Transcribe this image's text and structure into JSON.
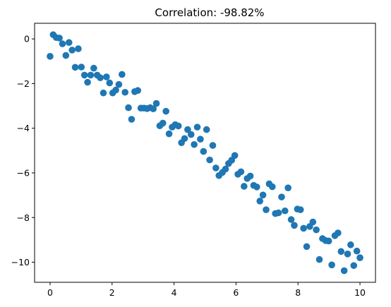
{
  "chart_data": {
    "type": "scatter",
    "title": "Correlation: -98.82%",
    "xlabel": "",
    "ylabel": "",
    "xlim": [
      -0.5,
      10.5
    ],
    "ylim": [
      -10.9,
      0.7
    ],
    "xticks": [
      0,
      2,
      4,
      6,
      8,
      10
    ],
    "yticks": [
      0,
      -2,
      -4,
      -6,
      -8,
      -10
    ],
    "xtick_labels": [
      "0",
      "2",
      "4",
      "6",
      "8",
      "10"
    ],
    "ytick_labels": [
      "0",
      "−2",
      "−4",
      "−6",
      "−8",
      "−10"
    ],
    "grid": false,
    "marker_color": "#1f77b4",
    "x": [
      0.0,
      0.1,
      0.2,
      0.3,
      0.4,
      0.51,
      0.61,
      0.71,
      0.81,
      0.91,
      1.01,
      1.11,
      1.21,
      1.31,
      1.41,
      1.52,
      1.62,
      1.72,
      1.82,
      1.92,
      2.02,
      2.12,
      2.22,
      2.32,
      2.42,
      2.53,
      2.63,
      2.73,
      2.83,
      2.93,
      3.03,
      3.13,
      3.23,
      3.33,
      3.43,
      3.54,
      3.64,
      3.74,
      3.84,
      3.94,
      4.04,
      4.14,
      4.24,
      4.34,
      4.44,
      4.55,
      4.65,
      4.75,
      4.85,
      4.95,
      5.05,
      5.15,
      5.25,
      5.35,
      5.45,
      5.56,
      5.66,
      5.76,
      5.86,
      5.96,
      6.06,
      6.16,
      6.26,
      6.36,
      6.46,
      6.57,
      6.67,
      6.77,
      6.87,
      6.97,
      7.07,
      7.17,
      7.27,
      7.37,
      7.47,
      7.58,
      7.68,
      7.78,
      7.88,
      7.98,
      8.08,
      8.18,
      8.28,
      8.38,
      8.48,
      8.59,
      8.69,
      8.79,
      8.89,
      8.99,
      9.09,
      9.19,
      9.29,
      9.39,
      9.49,
      9.6,
      9.7,
      9.8,
      9.9,
      10.0
    ],
    "y": [
      -0.78,
      0.19,
      0.06,
      0.04,
      -0.22,
      -0.74,
      -0.16,
      -0.5,
      -1.27,
      -0.44,
      -1.26,
      -1.62,
      -1.94,
      -1.62,
      -1.31,
      -1.62,
      -1.74,
      -2.42,
      -1.7,
      -1.97,
      -2.42,
      -2.29,
      -2.04,
      -1.59,
      -2.39,
      -3.08,
      -3.6,
      -2.36,
      -2.31,
      -3.1,
      -3.1,
      -3.12,
      -3.08,
      -3.13,
      -2.89,
      -3.89,
      -3.77,
      -3.24,
      -4.25,
      -3.95,
      -3.84,
      -3.9,
      -4.65,
      -4.46,
      -4.06,
      -4.28,
      -4.73,
      -3.95,
      -4.49,
      -5.04,
      -4.06,
      -5.42,
      -4.77,
      -5.78,
      -6.12,
      -5.98,
      -5.83,
      -5.58,
      -5.43,
      -5.22,
      -6.06,
      -5.95,
      -6.6,
      -6.25,
      -6.14,
      -6.56,
      -6.63,
      -7.26,
      -6.99,
      -7.65,
      -6.49,
      -6.62,
      -7.82,
      -7.79,
      -7.08,
      -7.7,
      -6.67,
      -8.09,
      -8.35,
      -7.62,
      -7.65,
      -8.48,
      -9.3,
      -8.4,
      -8.2,
      -8.55,
      -9.88,
      -8.94,
      -9.03,
      -9.05,
      -10.12,
      -8.81,
      -8.69,
      -9.52,
      -10.38,
      -9.63,
      -9.22,
      -10.15,
      -9.5,
      -9.8
    ]
  }
}
